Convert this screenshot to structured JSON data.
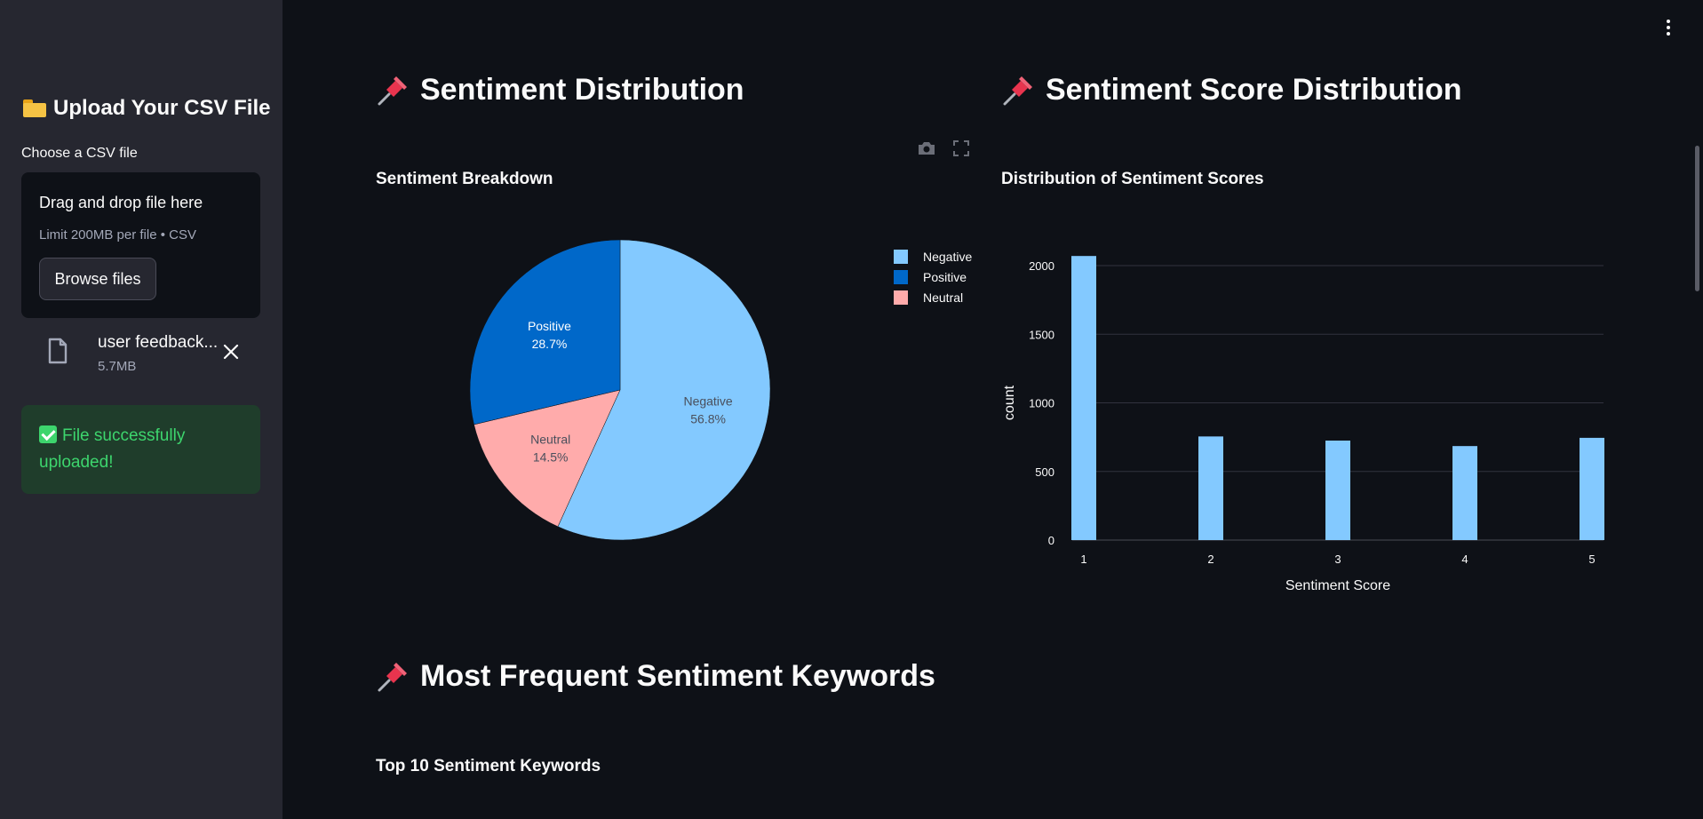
{
  "sidebar": {
    "title": "Upload Your CSV File",
    "upload_label": "Choose a CSV file",
    "dropzone_title": "Drag and drop file here",
    "dropzone_limit": "Limit 200MB per file • CSV",
    "browse_label": "Browse files",
    "file_name": "user feedback...",
    "file_size": "5.7MB",
    "success_message": "File successfully uploaded!"
  },
  "sections": {
    "sentiment_distribution": "Sentiment Distribution",
    "score_distribution": "Sentiment Score Distribution",
    "keywords": "Most Frequent Sentiment Keywords"
  },
  "colors": {
    "negative": "#83c9ff",
    "positive": "#0068c9",
    "neutral": "#ffabab",
    "bar": "#83c9ff"
  },
  "chart_data": [
    {
      "type": "pie",
      "title": "Sentiment Breakdown",
      "slices": [
        {
          "label": "Negative",
          "value": 56.8,
          "display": "56.8%"
        },
        {
          "label": "Neutral",
          "value": 14.5,
          "display": "14.5%"
        },
        {
          "label": "Positive",
          "value": 28.7,
          "display": "28.7%"
        }
      ],
      "legend": [
        "Negative",
        "Positive",
        "Neutral"
      ],
      "legend_position": "top-right"
    },
    {
      "type": "bar",
      "title": "Distribution of Sentiment Scores",
      "categories": [
        "1",
        "2",
        "3",
        "4",
        "5"
      ],
      "values": [
        2070,
        755,
        725,
        685,
        745
      ],
      "xlabel": "Sentiment Score",
      "ylabel": "count",
      "ylim": [
        0,
        2000
      ],
      "yticks": [
        "0",
        "500",
        "1000",
        "1500",
        "2000"
      ],
      "grid": true
    },
    {
      "type": "bar",
      "title": "Top 10 Sentiment Keywords"
    }
  ]
}
